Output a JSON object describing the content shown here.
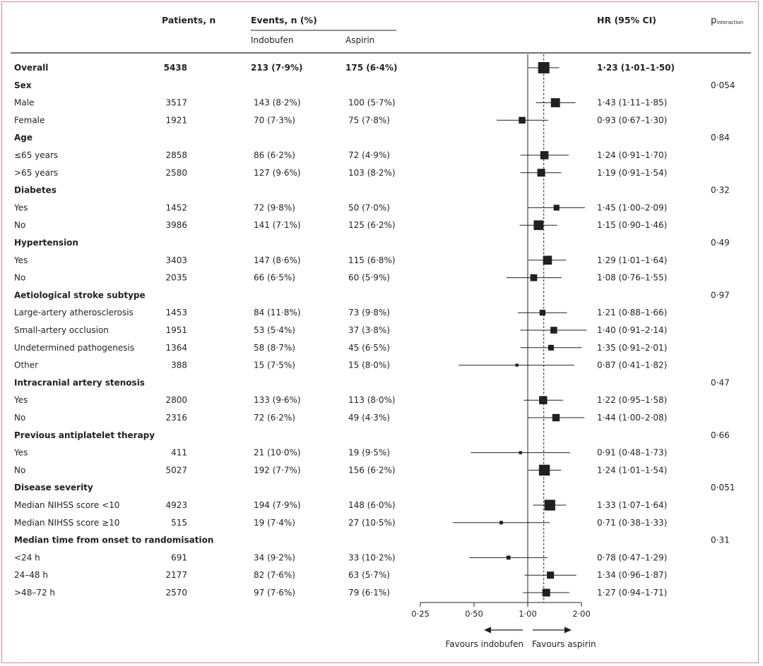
{
  "header": {
    "patients": "Patients, n",
    "events": "Events, n (%)",
    "indobufen": "Indobufen",
    "aspirin": "Aspirin",
    "hr": "HR (95% CI)",
    "p_main": "p",
    "p_sub": "interaction"
  },
  "rows": [
    {
      "type": "overall",
      "label": "Overall",
      "n": "5438",
      "ind": "213 (7·9%)",
      "asp": "175 (6·4%)",
      "hrtext": "1·23 (1·01–1·50)",
      "hr": 1.23,
      "lo": 1.01,
      "hi": 1.5,
      "p": ""
    },
    {
      "type": "group",
      "label": "Sex",
      "p": "0·054"
    },
    {
      "type": "sub",
      "label": "Male",
      "n": "3517",
      "ind": "143 (8·2%)",
      "asp": "100 (5·7%)",
      "hrtext": "1·43 (1·11–1·85)",
      "hr": 1.43,
      "lo": 1.11,
      "hi": 1.85
    },
    {
      "type": "sub",
      "label": "Female",
      "n": "1921",
      "ind": "70 (7·3%)",
      "asp": "75 (7·8%)",
      "hrtext": "0·93 (0·67–1·30)",
      "hr": 0.93,
      "lo": 0.67,
      "hi": 1.3
    },
    {
      "type": "group",
      "label": "Age",
      "p": "0·84"
    },
    {
      "type": "sub",
      "label": "≤65 years",
      "n": "2858",
      "ind": "86 (6·2%)",
      "asp": "72 (4·9%)",
      "hrtext": "1·24 (0·91–1·70)",
      "hr": 1.24,
      "lo": 0.91,
      "hi": 1.7
    },
    {
      "type": "sub",
      "label": ">65 years",
      "n": "2580",
      "ind": "127 (9·6%)",
      "asp": "103 (8·2%)",
      "hrtext": "1·19 (0·91–1·54)",
      "hr": 1.19,
      "lo": 0.91,
      "hi": 1.54
    },
    {
      "type": "group",
      "label": "Diabetes",
      "p": "0·32"
    },
    {
      "type": "sub",
      "label": "Yes",
      "n": "1452",
      "ind": "72 (9·8%)",
      "asp": "50 (7·0%)",
      "hrtext": "1·45 (1·00–2·09)",
      "hr": 1.45,
      "lo": 1.0,
      "hi": 2.09
    },
    {
      "type": "sub",
      "label": "No",
      "n": "3986",
      "ind": "141 (7·1%)",
      "asp": "125 (6·2%)",
      "hrtext": "1·15 (0·90–1·46)",
      "hr": 1.15,
      "lo": 0.9,
      "hi": 1.46
    },
    {
      "type": "group",
      "label": "Hypertension",
      "p": "0·49"
    },
    {
      "type": "sub",
      "label": "Yes",
      "n": "3403",
      "ind": "147 (8·6%)",
      "asp": "115 (6·8%)",
      "hrtext": "1·29 (1·01–1·64)",
      "hr": 1.29,
      "lo": 1.01,
      "hi": 1.64
    },
    {
      "type": "sub",
      "label": "No",
      "n": "2035",
      "ind": "66 (6·5%)",
      "asp": "60 (5·9%)",
      "hrtext": "1·08 (0·76–1·55)",
      "hr": 1.08,
      "lo": 0.76,
      "hi": 1.55
    },
    {
      "type": "group",
      "label": "Aetiological stroke subtype",
      "p": "0·97"
    },
    {
      "type": "sub",
      "label": "Large-artery atherosclerosis",
      "n": "1453",
      "ind": "84 (11·8%)",
      "asp": "73 (9·8%)",
      "hrtext": "1·21 (0·88–1·66)",
      "hr": 1.21,
      "lo": 0.88,
      "hi": 1.66
    },
    {
      "type": "sub",
      "label": "Small-artery occlusion",
      "n": "1951",
      "ind": "53 (5·4%)",
      "asp": "37 (3·8%)",
      "hrtext": "1·40 (0·91–2·14)",
      "hr": 1.4,
      "lo": 0.91,
      "hi": 2.14
    },
    {
      "type": "sub",
      "label": "Undetermined pathogenesis",
      "n": "1364",
      "ind": "58 (8·7%)",
      "asp": "45 (6·5%)",
      "hrtext": "1·35 (0·91–2·01)",
      "hr": 1.35,
      "lo": 0.91,
      "hi": 2.01
    },
    {
      "type": "sub",
      "label": "Other",
      "n": "388",
      "ind": "15 (7·5%)",
      "asp": "15 (8·0%)",
      "hrtext": "0·87 (0·41–1·82)",
      "hr": 0.87,
      "lo": 0.41,
      "hi": 1.82
    },
    {
      "type": "group",
      "label": "Intracranial artery stenosis",
      "p": "0·47"
    },
    {
      "type": "sub",
      "label": "Yes",
      "n": "2800",
      "ind": "133 (9·6%)",
      "asp": "113 (8·0%)",
      "hrtext": "1·22 (0·95–1·58)",
      "hr": 1.22,
      "lo": 0.95,
      "hi": 1.58
    },
    {
      "type": "sub",
      "label": "No",
      "n": "2316",
      "ind": "72 (6·2%)",
      "asp": "49 (4·3%)",
      "hrtext": "1·44 (1·00–2·08)",
      "hr": 1.44,
      "lo": 1.0,
      "hi": 2.08
    },
    {
      "type": "group",
      "label": "Previous antiplatelet therapy",
      "p": "0·66"
    },
    {
      "type": "sub",
      "label": "Yes",
      "n": "411",
      "ind": "21 (10·0%)",
      "asp": "19 (9·5%)",
      "hrtext": "0·91 (0·48–1·73)",
      "hr": 0.91,
      "lo": 0.48,
      "hi": 1.73
    },
    {
      "type": "sub",
      "label": "No",
      "n": "5027",
      "ind": "192 (7·7%)",
      "asp": "156 (6·2%)",
      "hrtext": "1·24 (1·01–1·54)",
      "hr": 1.24,
      "lo": 1.01,
      "hi": 1.54
    },
    {
      "type": "group",
      "label": "Disease severity",
      "p": "0·051"
    },
    {
      "type": "sub",
      "label": "Median NIHSS score <10",
      "n": "4923",
      "ind": "194 (7·9%)",
      "asp": "148 (6·0%)",
      "hrtext": "1·33 (1·07–1·64)",
      "hr": 1.33,
      "lo": 1.07,
      "hi": 1.64
    },
    {
      "type": "sub",
      "label": "Median NIHSS score ≥10",
      "n": "515",
      "ind": "19 (7·4%)",
      "asp": "27 (10·5%)",
      "hrtext": "0·71 (0·38–1·33)",
      "hr": 0.71,
      "lo": 0.38,
      "hi": 1.33
    },
    {
      "type": "group",
      "label": "Median time from onset to randomisation",
      "p": "0·31"
    },
    {
      "type": "sub",
      "label": "<24 h",
      "n": "691",
      "ind": "34 (9·2%)",
      "asp": "33 (10·2%)",
      "hrtext": "0·78 (0·47–1·29)",
      "hr": 0.78,
      "lo": 0.47,
      "hi": 1.29
    },
    {
      "type": "sub",
      "label": "24–48 h",
      "n": "2177",
      "ind": "82 (7·6%)",
      "asp": "63 (5·7%)",
      "hrtext": "1·34 (0·96–1·87)",
      "hr": 1.34,
      "lo": 0.96,
      "hi": 1.87
    },
    {
      "type": "sub",
      "label": ">48–72 h",
      "n": "2570",
      "ind": "97 (7·6%)",
      "asp": "79 (6·1%)",
      "hrtext": "1·27 (0·94–1·71)",
      "hr": 1.27,
      "lo": 0.94,
      "hi": 1.71
    }
  ],
  "chart_data": {
    "type": "scatter",
    "xscale": "log",
    "xlim": [
      0.25,
      2.0
    ],
    "xticks": [
      0.25,
      0.5,
      1.0,
      2.0
    ],
    "xtick_labels": [
      "0·25",
      "0·50",
      "1·00",
      "2·00"
    ],
    "reference_line": 1.0,
    "overall_line": 1.23,
    "favours_left": "Favours indobufen",
    "favours_right": "Favours aspirin",
    "colors": {
      "frame": "#e07fb1",
      "ink": "#231f20"
    }
  }
}
